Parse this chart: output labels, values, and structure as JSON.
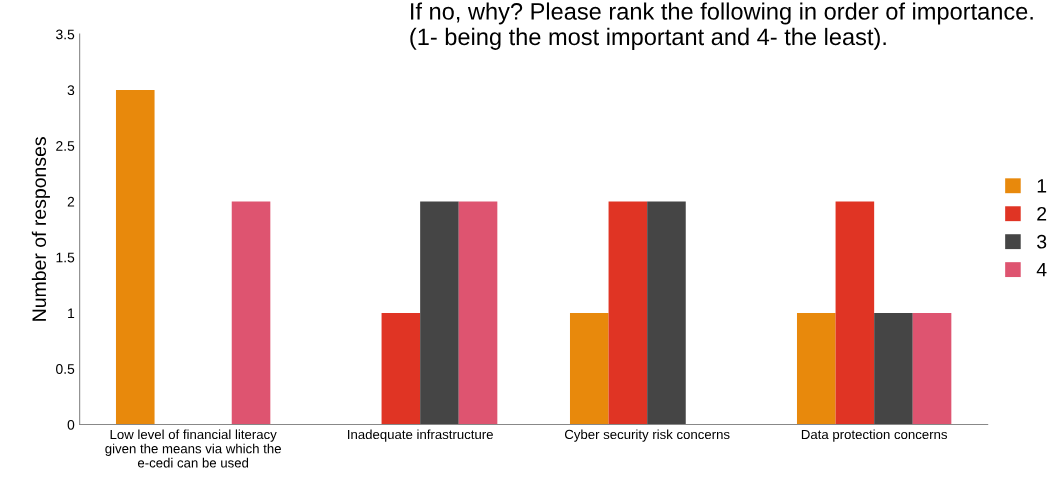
{
  "chart_data": {
    "type": "bar",
    "title": "If no, why? Please rank the following in order of importance.\n(1- being the most important and 4- the least).",
    "ylabel": "Number of responses",
    "categories": [
      "Low level of financial literacy\ngiven the means via which the\ne-cedi can be used",
      "Inadequate infrastructure",
      "Cyber security risk concerns",
      "Data protection concerns"
    ],
    "series": [
      {
        "name": "1",
        "color": "#e8890c",
        "values": [
          3,
          0,
          1,
          1
        ]
      },
      {
        "name": "2",
        "color": "#e03424",
        "values": [
          0,
          1,
          2,
          2
        ]
      },
      {
        "name": "3",
        "color": "#454545",
        "values": [
          0,
          2,
          2,
          1
        ]
      },
      {
        "name": "4",
        "color": "#de5470",
        "values": [
          2,
          2,
          0,
          1
        ]
      }
    ],
    "ylim": [
      0,
      3.5
    ],
    "yticks": [
      0,
      0.5,
      1,
      1.5,
      2,
      2.5,
      3,
      3.5
    ],
    "grid": false,
    "legend": "right"
  }
}
